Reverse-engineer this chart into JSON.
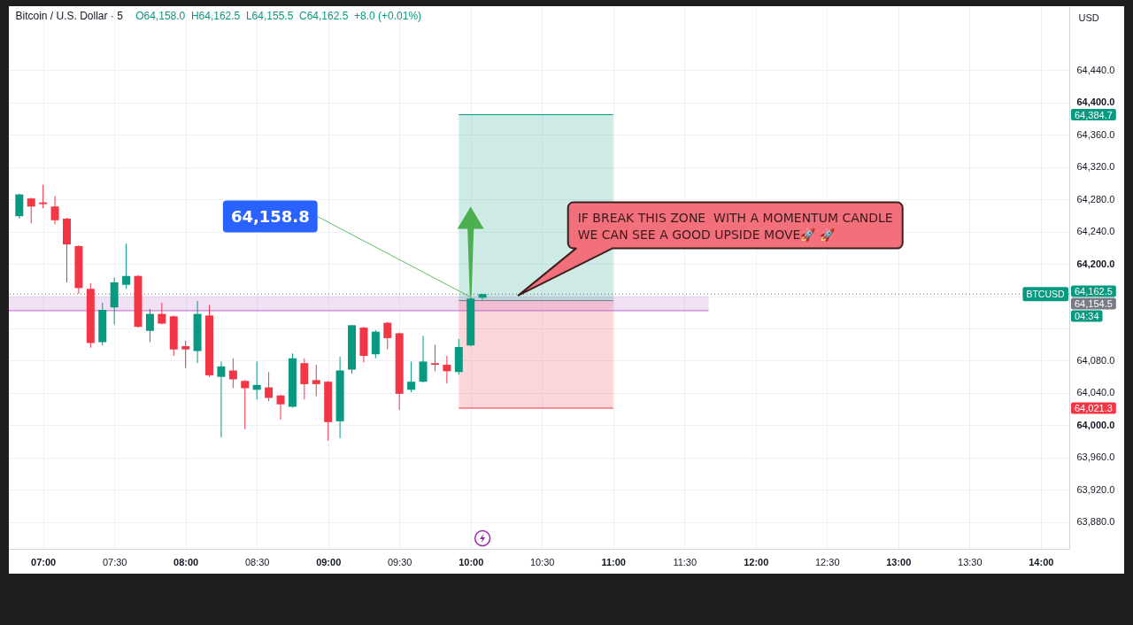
{
  "chart_data": {
    "type": "candlestick",
    "title": "Bitcoin / U.S. Dollar · 5",
    "subtitle": "O64,158.0  H64,162.5  L64,155.5  C64,162.5  +8.0 (+0.01%)",
    "ylabel": "USD",
    "x": [
      6.8333,
      6.9167,
      7,
      7.0833,
      7.1667,
      7.25,
      7.3333,
      7.4167,
      7.5,
      7.5833,
      7.6667,
      7.75,
      7.8333,
      7.9167,
      8,
      8.0833,
      8.1667,
      8.25,
      8.3333,
      8.4167,
      8.5,
      8.5833,
      8.6667,
      8.75,
      8.8333,
      8.9167,
      9,
      9.0833,
      9.1667,
      9.25,
      9.3333,
      9.4167,
      9.5,
      9.5833,
      9.6667,
      9.75,
      9.8333,
      9.9167,
      10,
      10.0833
    ],
    "ohlc": [
      [
        64259,
        64287,
        64256,
        64286
      ],
      [
        64281,
        64282,
        64250,
        64271
      ],
      [
        64276,
        64298,
        64269,
        64274
      ],
      [
        64271,
        64284,
        64249,
        64254
      ],
      [
        64256,
        64257,
        64177,
        64224
      ],
      [
        64222,
        64223,
        64163,
        64170
      ],
      [
        64169,
        64176,
        64096,
        64102
      ],
      [
        64103,
        64152,
        64099,
        64143
      ],
      [
        64146,
        64183,
        64125,
        64177
      ],
      [
        64174,
        64225,
        64169,
        64185
      ],
      [
        64185,
        64186,
        64121,
        64122
      ],
      [
        64117,
        64144,
        64103,
        64138
      ],
      [
        64138,
        64152,
        64125,
        64126
      ],
      [
        64135,
        64136,
        64086,
        64094
      ],
      [
        64098,
        64105,
        64071,
        64094
      ],
      [
        64092,
        64154,
        64077,
        64138
      ],
      [
        64136,
        64149,
        64060,
        64062
      ],
      [
        64060,
        64079,
        63985,
        64073
      ],
      [
        64068,
        64083,
        64046,
        64057
      ],
      [
        64055,
        64056,
        63995,
        64046
      ],
      [
        64044,
        64079,
        64032,
        64050
      ],
      [
        64047,
        64066,
        64030,
        64034
      ],
      [
        64037,
        64038,
        64007,
        64026
      ],
      [
        64023,
        64089,
        64022,
        64083
      ],
      [
        64077,
        64083,
        64032,
        64051
      ],
      [
        64056,
        64075,
        64036,
        64051
      ],
      [
        64054,
        64055,
        63981,
        64004
      ],
      [
        64005,
        64085,
        63984,
        64068
      ],
      [
        64069,
        64124,
        64064,
        64124
      ],
      [
        64121,
        64122,
        64078,
        64086
      ],
      [
        64088,
        64118,
        64083,
        64116
      ],
      [
        64127,
        64128,
        64094,
        64108
      ],
      [
        64114,
        64115,
        64019,
        64039
      ],
      [
        64044,
        64079,
        64041,
        64054
      ],
      [
        64054,
        64111,
        64053,
        64079
      ],
      [
        64077,
        64100,
        64067,
        64075
      ],
      [
        64075,
        64086,
        64052,
        64067
      ],
      [
        64066,
        64107,
        64063,
        64097
      ],
      [
        64099,
        64158.8,
        64098,
        64157
      ],
      [
        64158.0,
        64162.5,
        64155.5,
        64162.5
      ]
    ],
    "colors": [
      "#089981",
      "#f23645",
      "#f23645",
      "#f23645",
      "#f23645",
      "#f23645",
      "#f23645",
      "#089981",
      "#089981",
      "#089981",
      "#f23645",
      "#089981",
      "#f23645",
      "#f23645",
      "#f23645",
      "#089981",
      "#f23645",
      "#089981",
      "#f23645",
      "#f23645",
      "#089981",
      "#f23645",
      "#f23645",
      "#089981",
      "#f23645",
      "#f23645",
      "#f23645",
      "#089981",
      "#089981",
      "#f23645",
      "#089981",
      "#f23645",
      "#f23645",
      "#089981",
      "#089981",
      "#f23645",
      "#f23645",
      "#089981",
      "#089981",
      "#089981"
    ],
    "series": [
      {
        "type": "line",
        "color": "#ba68c8",
        "x": [
          6.76,
          11.67
        ],
        "values": [
          64142,
          64142
        ],
        "lower": [
          64142,
          64142
        ],
        "upper": [
          64160,
          64160
        ]
      },
      {
        "type": "line",
        "color": "#089981",
        "x": [
          9.9167,
          11.0
        ],
        "values": [
          64384.7,
          64384.7
        ],
        "lower": [
          64154.5,
          64154.5
        ],
        "upper": [
          64384.7,
          64384.7
        ]
      },
      {
        "type": "line",
        "color": "#f23645",
        "x": [
          9.9167,
          11.0
        ],
        "values": [
          64021.3,
          64021.3
        ],
        "lower": [
          64021.3,
          64021.3
        ],
        "upper": [
          64154.5,
          64154.5
        ]
      },
      {
        "type": "line",
        "color": "#787b86",
        "x": [
          9.9167,
          11.0
        ],
        "values": [
          64154.5,
          64154.5
        ]
      }
    ],
    "ref_lines": [
      {
        "axis": "y",
        "value": 64162.5,
        "label": "BTCUSD",
        "color": "#089981",
        "line_style": "dotted"
      }
    ],
    "annotations": [
      {
        "text": "64,158.8",
        "x": 10,
        "y": 64158.8
      },
      "IF BREAK THIS ZONE  WITH A MOMENTUM CANDLE\nWE CAN SEE A GOOD UPSIDE MOVE🚀 🚀",
      "04:34"
    ],
    "xlim": [
      6.76,
      14.2
    ],
    "ylim": [
      63847,
      64518
    ],
    "xticks": [
      {
        "value": 7,
        "label": "07:00"
      },
      {
        "value": 7.5,
        "label": "07:30"
      },
      {
        "value": 8,
        "label": "08:00"
      },
      {
        "value": 8.5,
        "label": "08:30"
      },
      {
        "value": 9,
        "label": "09:00"
      },
      {
        "value": 9.5,
        "label": "09:30"
      },
      {
        "value": 10,
        "label": "10:00"
      },
      {
        "value": 10.5,
        "label": "10:30"
      },
      {
        "value": 11,
        "label": "11:00"
      },
      {
        "value": 11.5,
        "label": "11:30"
      },
      {
        "value": 12,
        "label": "12:00"
      },
      {
        "value": 12.5,
        "label": "12:30"
      },
      {
        "value": 13,
        "label": "13:00"
      },
      {
        "value": 13.5,
        "label": "13:30"
      },
      {
        "value": 14,
        "label": "14:00"
      }
    ],
    "yticks": [
      {
        "value": 63880,
        "label": "63,880.0"
      },
      {
        "value": 63920,
        "label": "63,920.0"
      },
      {
        "value": 63960,
        "label": "63,960.0"
      },
      {
        "value": 64000,
        "label": "64,000.0"
      },
      {
        "value": 64021.3,
        "label": "64,021.3"
      },
      {
        "value": 64040,
        "label": "64,040.0"
      },
      {
        "value": 64080,
        "label": "64,080.0"
      },
      {
        "value": 64120,
        "label": null
      },
      {
        "value": 64154.5,
        "label": "64,154.5"
      },
      {
        "value": 64160,
        "label": null
      },
      {
        "value": 64162.5,
        "label": "64,162.5"
      },
      {
        "value": 64200,
        "label": "64,200.0"
      },
      {
        "value": 64240,
        "label": "64,240.0"
      },
      {
        "value": 64280,
        "label": "64,280.0"
      },
      {
        "value": 64320,
        "label": "64,320.0"
      },
      {
        "value": 64360,
        "label": "64,360.0"
      },
      {
        "value": 64384.7,
        "label": "64,384.7"
      },
      {
        "value": 64400,
        "label": "64,400.0"
      },
      {
        "value": 64440,
        "label": "64,440.0"
      }
    ],
    "grid": true
  }
}
